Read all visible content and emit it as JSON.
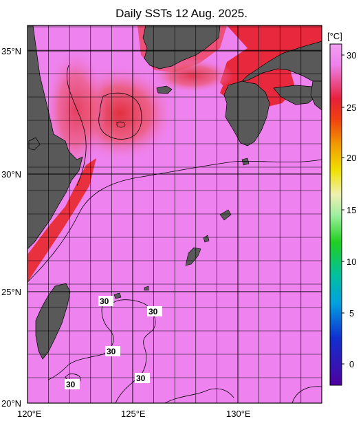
{
  "title": "Daily SSTs 12 Aug. 2025.",
  "x_axis": {
    "ticks": [
      "120°E",
      "125°E",
      "130°E"
    ]
  },
  "y_axis": {
    "ticks": [
      "35°N",
      "30°N",
      "25°N",
      "20°N"
    ]
  },
  "colorbar": {
    "unit": "[°C]",
    "ticks": [
      "30",
      "25",
      "20",
      "15",
      "10",
      "5",
      "0"
    ],
    "range": [
      -2,
      32
    ]
  },
  "contour_labels": [
    "30",
    "30",
    "30",
    "30",
    "30"
  ],
  "colors": {
    "land": "#595959",
    "sea_warm": "#ee82ee",
    "sea_hot": "#e8283c",
    "outline": "#000000"
  }
}
